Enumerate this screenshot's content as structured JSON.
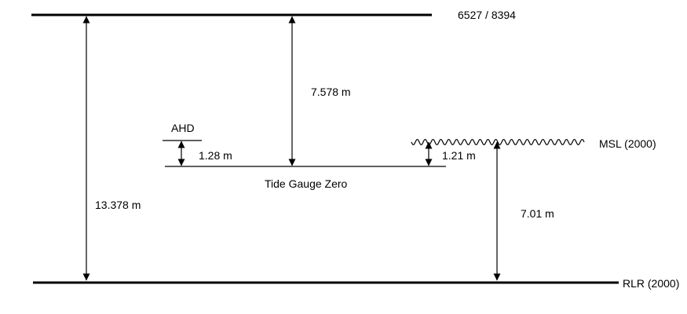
{
  "diagram": {
    "benchmark_label": "6527 / 8394",
    "ahd_label": "AHD",
    "tide_gauge_zero_label": "Tide Gauge Zero",
    "msl_label": "MSL (2000)",
    "rlr_label": "RLR (2000)",
    "dimensions": {
      "benchmark_to_tgz": "7.578 m",
      "benchmark_to_rlr": "13.378 m",
      "ahd_to_tgz": "1.28 m",
      "msl_to_tgz": "1.21 m",
      "msl_to_rlr": "7.01 m"
    }
  }
}
